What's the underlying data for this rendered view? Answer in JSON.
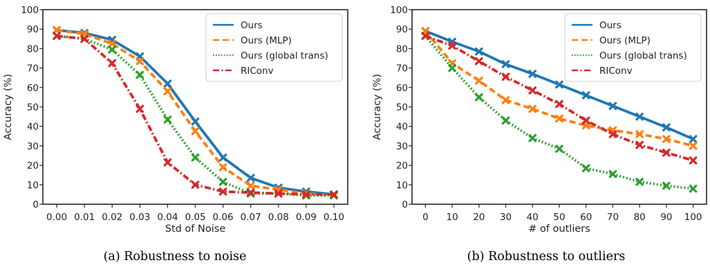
{
  "chart_data": [
    {
      "type": "line",
      "caption": "(a) Robustness to noise",
      "xlabel": "Std of Noise",
      "ylabel": "Accuracy (%)",
      "x": [
        0.0,
        0.01,
        0.02,
        0.03,
        0.04,
        0.05,
        0.06,
        0.07,
        0.08,
        0.09,
        0.1
      ],
      "xtick_labels": [
        "0.00",
        "0.01",
        "0.02",
        "0.03",
        "0.04",
        "0.05",
        "0.06",
        "0.07",
        "0.08",
        "0.09",
        "0.10"
      ],
      "yticks": [
        0,
        10,
        20,
        30,
        40,
        50,
        60,
        70,
        80,
        90,
        100
      ],
      "xlim": [
        -0.005,
        0.105
      ],
      "ylim": [
        0,
        100
      ],
      "grid": false,
      "legend_position": "top-right",
      "series": [
        {
          "name": "Ours",
          "color": "#1f77b4",
          "dash": "solid",
          "values": [
            89.5,
            88,
            84.5,
            76,
            62,
            42.5,
            24,
            13.5,
            8.5,
            6.5,
            5
          ]
        },
        {
          "name": "Ours (MLP)",
          "color": "#ff7f0e",
          "dash": "dashed",
          "values": [
            89.5,
            87.5,
            82.5,
            73.5,
            58,
            37.5,
            19,
            9.5,
            7.5,
            5.5,
            4.5
          ]
        },
        {
          "name": "Ours (global trans)",
          "color": "#2ca02c",
          "dash": "dotted",
          "values": [
            86.5,
            85,
            79.5,
            66.5,
            43.5,
            24,
            11.5,
            5.5,
            5.5,
            4.5,
            4.5
          ]
        },
        {
          "name": "RIConv",
          "color": "#d62728",
          "dash": "dashdot",
          "values": [
            86.5,
            85,
            72.5,
            49,
            21.5,
            10,
            6.5,
            6,
            5.5,
            5,
            5
          ]
        }
      ]
    },
    {
      "type": "line",
      "caption": "(b) Robustness to outliers",
      "xlabel": "# of outliers",
      "ylabel": "Accuracy (%)",
      "x": [
        0,
        10,
        20,
        30,
        40,
        50,
        60,
        70,
        80,
        90,
        100
      ],
      "xtick_labels": [
        "0",
        "10",
        "20",
        "30",
        "40",
        "50",
        "60",
        "70",
        "80",
        "90",
        "100"
      ],
      "yticks": [
        0,
        10,
        20,
        30,
        40,
        50,
        60,
        70,
        80,
        90,
        100
      ],
      "xlim": [
        -5,
        105
      ],
      "ylim": [
        0,
        100
      ],
      "grid": false,
      "legend_position": "top-right",
      "series": [
        {
          "name": "Ours",
          "color": "#1f77b4",
          "dash": "solid",
          "values": [
            89,
            83.5,
            78.5,
            72,
            67,
            61.5,
            56,
            50.5,
            45,
            39.5,
            33.5
          ]
        },
        {
          "name": "Ours (MLP)",
          "color": "#ff7f0e",
          "dash": "dashed",
          "values": [
            89,
            72.5,
            63.5,
            53.5,
            49,
            44,
            40.5,
            38,
            36,
            33.5,
            30
          ]
        },
        {
          "name": "Ours (global trans)",
          "color": "#2ca02c",
          "dash": "dotted",
          "values": [
            86.5,
            70,
            55,
            43,
            34,
            28.5,
            18.5,
            15.5,
            11.5,
            9.5,
            8
          ]
        },
        {
          "name": "RIConv",
          "color": "#d62728",
          "dash": "dashdot",
          "values": [
            86.5,
            81.5,
            73.5,
            65.5,
            58.5,
            51.5,
            43,
            36,
            30.5,
            26.5,
            22.5
          ]
        }
      ]
    }
  ]
}
